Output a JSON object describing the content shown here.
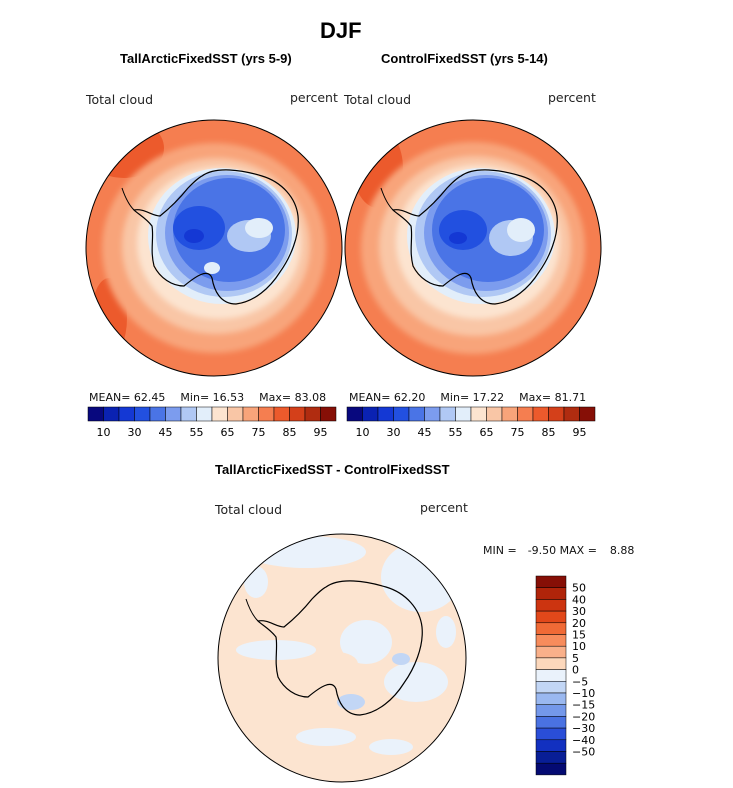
{
  "header": {
    "title": "DJF"
  },
  "panels": [
    {
      "title": "TallArcticFixedSST (yrs 5-9)",
      "variable": "Total cloud",
      "units": "percent",
      "stats": {
        "mean_label": "MEAN=",
        "mean": "62.45",
        "min_label": "Min=",
        "min": "16.53",
        "max_label": "Max=",
        "max": "83.08"
      }
    },
    {
      "title": "ControlFixedSST (yrs 5-14)",
      "variable": "Total cloud",
      "units": "percent",
      "stats": {
        "mean_label": "MEAN=",
        "mean": "62.20",
        "min_label": "Min=",
        "min": "17.22",
        "max_label": "Max=",
        "max": "81.71"
      }
    }
  ],
  "abs_colorbar": {
    "colors": [
      "#08087e",
      "#0a22b2",
      "#1438d4",
      "#2250e0",
      "#4a74e6",
      "#7c9cee",
      "#b0c8f4",
      "#e2eefa",
      "#fce4d0",
      "#f9c6a6",
      "#f8a47a",
      "#f57e50",
      "#ec5a2c",
      "#d4401a",
      "#b02c10",
      "#860f06"
    ],
    "tick_labels": [
      "10",
      "30",
      "45",
      "55",
      "65",
      "75",
      "85",
      "95"
    ]
  },
  "diff_panel": {
    "title": "TallArcticFixedSST - ControlFixedSST",
    "variable": "Total cloud",
    "units": "percent",
    "stats": {
      "min_label": "MIN =",
      "min": "-9.50",
      "max_label": "MAX =",
      "max": "8.88"
    }
  },
  "diff_colorbar": {
    "colors": [
      "#860f06",
      "#b0240a",
      "#cc3410",
      "#e2481a",
      "#f06a36",
      "#f78c5c",
      "#f9b08a",
      "#fcd8bc",
      "#eaf2fb",
      "#c2d6f5",
      "#9ab8f0",
      "#7498ea",
      "#4a72e2",
      "#2a4ed8",
      "#1230c0",
      "#081e96",
      "#040a72"
    ],
    "tick_labels": [
      "50",
      "40",
      "30",
      "20",
      "15",
      "10",
      "5",
      "0",
      "−5",
      "−10",
      "−15",
      "−20",
      "−30",
      "−40",
      "−50"
    ]
  }
}
